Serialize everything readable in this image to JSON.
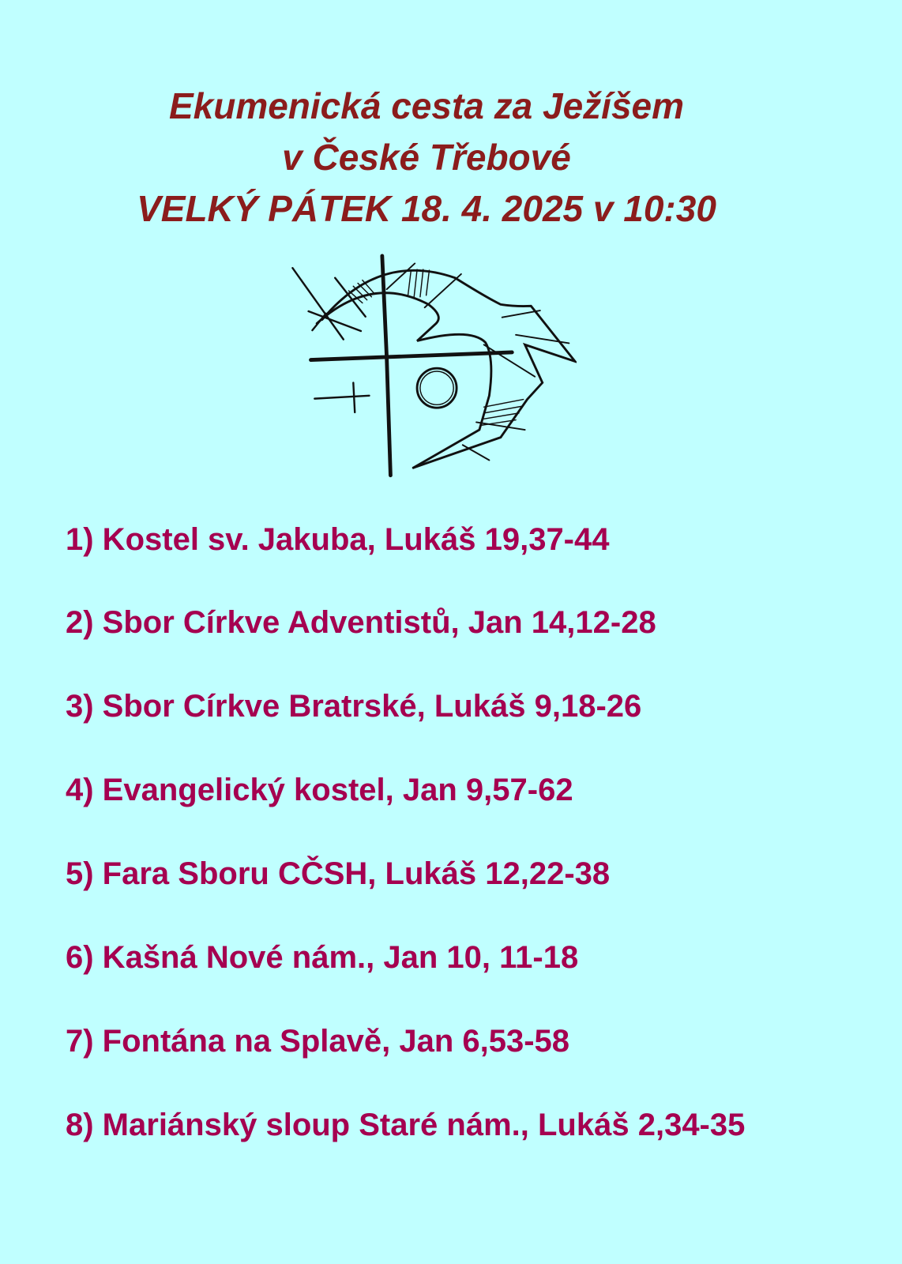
{
  "header": {
    "line1": "Ekumenická cesta za Ježíšem",
    "line2": "v České Třebové",
    "line3": "VELKÝ PÁTEK 18. 4. 2025 v 10:30"
  },
  "logo": {
    "icon": "cross-and-fish-sketch-icon"
  },
  "stations": [
    "1) Kostel sv. Jakuba, Lukáš 19,37-44",
    "2) Sbor Církve Adventistů, Jan 14,12-28",
    "3) Sbor Církve Bratrské,  Lukáš 9,18-26",
    "4) Evangelický kostel, Jan 9,57-62",
    "5) Fara Sboru CČSH, Lukáš 12,22-38",
    "6) Kašná Nové nám., Jan 10, 11-18",
    "7) Fontána na Splavě, Jan 6,53-58",
    "8) Mariánský sloup Staré nám., Lukáš 2,34-35"
  ],
  "colors": {
    "background": "#c0ffff",
    "title": "#8b1c1c",
    "list": "#a50050",
    "logo": "#111111"
  }
}
